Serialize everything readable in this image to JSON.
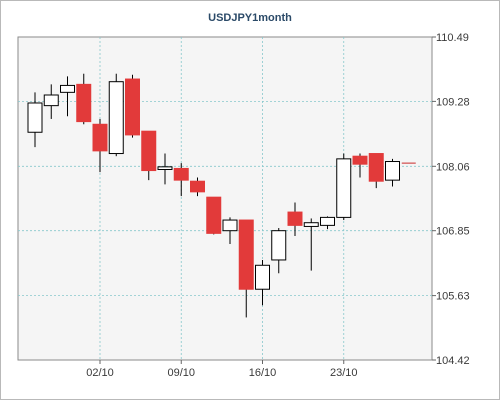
{
  "chart_data": {
    "type": "candlestick",
    "title": "USDJPY1month",
    "xlabel": "",
    "ylabel": "",
    "ylim": [
      104.42,
      110.49
    ],
    "y_ticks": [
      "110.49",
      "109.28",
      "108.06",
      "106.85",
      "105.63",
      "104.42"
    ],
    "x_ticks": [
      {
        "label": "02/10",
        "index": 4
      },
      {
        "label": "09/10",
        "index": 9
      },
      {
        "label": "16/10",
        "index": 14
      },
      {
        "label": "23/10",
        "index": 19
      }
    ],
    "grid": true,
    "colors": {
      "up": "#ffffff",
      "down": "#e23a3a",
      "outline": "#000000",
      "grid": "#88c8cc",
      "plot_bg": "#f5f5f5"
    },
    "candles": [
      {
        "o": 108.7,
        "h": 109.45,
        "l": 108.42,
        "c": 109.25
      },
      {
        "o": 109.2,
        "h": 109.6,
        "l": 108.95,
        "c": 109.4
      },
      {
        "o": 109.45,
        "h": 109.75,
        "l": 109.0,
        "c": 109.58
      },
      {
        "o": 109.6,
        "h": 109.8,
        "l": 108.85,
        "c": 108.9
      },
      {
        "o": 108.85,
        "h": 108.95,
        "l": 107.95,
        "c": 108.35
      },
      {
        "o": 108.3,
        "h": 109.8,
        "l": 108.25,
        "c": 109.65
      },
      {
        "o": 109.7,
        "h": 109.78,
        "l": 108.6,
        "c": 108.65
      },
      {
        "o": 108.72,
        "h": 108.72,
        "l": 107.8,
        "c": 107.98
      },
      {
        "o": 108.0,
        "h": 108.3,
        "l": 107.72,
        "c": 108.05
      },
      {
        "o": 108.02,
        "h": 108.12,
        "l": 107.5,
        "c": 107.8
      },
      {
        "o": 107.78,
        "h": 107.85,
        "l": 107.5,
        "c": 107.58
      },
      {
        "o": 107.48,
        "h": 107.48,
        "l": 106.78,
        "c": 106.8
      },
      {
        "o": 106.85,
        "h": 107.1,
        "l": 106.6,
        "c": 107.05
      },
      {
        "o": 107.05,
        "h": 107.05,
        "l": 105.22,
        "c": 105.75
      },
      {
        "o": 105.75,
        "h": 106.3,
        "l": 105.45,
        "c": 106.2
      },
      {
        "o": 106.3,
        "h": 106.9,
        "l": 106.05,
        "c": 106.85
      },
      {
        "o": 107.2,
        "h": 107.38,
        "l": 106.75,
        "c": 106.95
      },
      {
        "o": 106.93,
        "h": 107.08,
        "l": 106.1,
        "c": 107.0
      },
      {
        "o": 106.95,
        "h": 107.12,
        "l": 106.88,
        "c": 107.1
      },
      {
        "o": 107.1,
        "h": 108.3,
        "l": 107.05,
        "c": 108.2
      },
      {
        "o": 108.25,
        "h": 108.3,
        "l": 107.85,
        "c": 108.1
      },
      {
        "o": 108.3,
        "h": 108.3,
        "l": 107.65,
        "c": 107.78
      },
      {
        "o": 107.8,
        "h": 108.2,
        "l": 107.68,
        "c": 108.15
      },
      {
        "o": 108.12,
        "h": 108.12,
        "l": 108.12,
        "c": 108.12
      }
    ]
  }
}
